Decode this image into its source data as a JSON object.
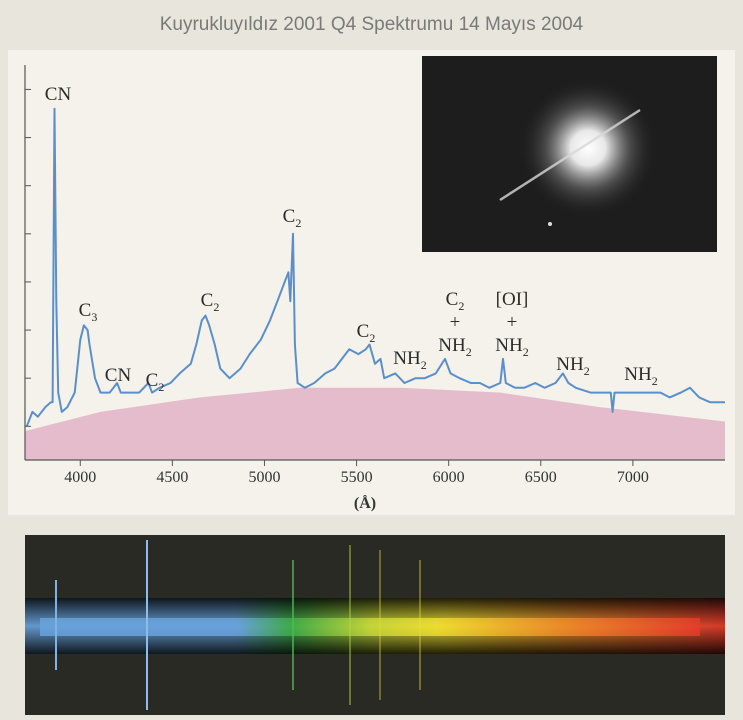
{
  "chart_data": {
    "type": "line",
    "title": "Kuyrukluyıldız 2001 Q4 Spektrumu 14 Mayıs 2004",
    "x_label": "(Å)",
    "xlim": [
      3700,
      7500
    ],
    "xticks": [
      4000,
      4500,
      5000,
      5500,
      6000,
      6500,
      7000
    ],
    "ylim": [
      -7,
      73
    ],
    "yticks": [
      0,
      10,
      20,
      30,
      40,
      50,
      60,
      70
    ],
    "series": [
      {
        "color": "#5b8fcb",
        "style": "line",
        "x": [
          3710,
          3740,
          3770,
          3810,
          3840,
          3850,
          3860,
          3870,
          3880,
          3900,
          3930,
          3970,
          4000,
          4020,
          4040,
          4050,
          4080,
          4110,
          4160,
          4200,
          4220,
          4270,
          4320,
          4370,
          4390,
          4430,
          4490,
          4540,
          4600,
          4630,
          4660,
          4680,
          4700,
          4730,
          4760,
          4810,
          4870,
          4920,
          4980,
          5030,
          5070,
          5110,
          5130,
          5140,
          5155,
          5165,
          5180,
          5220,
          5270,
          5330,
          5380,
          5440,
          5460,
          5510,
          5550,
          5570,
          5600,
          5630,
          5650,
          5710,
          5760,
          5820,
          5870,
          5930,
          5980,
          6010,
          6060,
          6120,
          6170,
          6220,
          6280,
          6295,
          6310,
          6360,
          6410,
          6470,
          6520,
          6580,
          6620,
          6650,
          6690,
          6770,
          6820,
          6880,
          6890,
          6900,
          6960,
          7040,
          7090,
          7150,
          7200,
          7260,
          7310,
          7360,
          7420,
          7470,
          7500
        ],
        "values": [
          0,
          3,
          2,
          4,
          5,
          5,
          66,
          26,
          7,
          3,
          4,
          7,
          18,
          21,
          20,
          17,
          10,
          7,
          7,
          9,
          7,
          7,
          7,
          9,
          7,
          8,
          9,
          11,
          13,
          17,
          22,
          23,
          21,
          17,
          12,
          10,
          12,
          15,
          18,
          22,
          26,
          30,
          32,
          26,
          40,
          17,
          9,
          8,
          9,
          11,
          12,
          15,
          16,
          15,
          16,
          17,
          13,
          14,
          10,
          11,
          9,
          10,
          10,
          11,
          14,
          11,
          10,
          9,
          9,
          8,
          9,
          14,
          9,
          8,
          8,
          9,
          8,
          9,
          11,
          9,
          8,
          7,
          7,
          7,
          3,
          7,
          7,
          7,
          7,
          7,
          6,
          7,
          8,
          6,
          5,
          5,
          5
        ]
      },
      {
        "color": "#e5bccb",
        "style": "area",
        "x": [
          3700,
          4110,
          4650,
          5190,
          5740,
          6280,
          6820,
          7500
        ],
        "values": [
          -1,
          3,
          6,
          8,
          8,
          7,
          4,
          1
        ]
      }
    ],
    "annotations": [
      [
        [
          "CN"
        ]
      ],
      [
        [
          "C",
          "3"
        ]
      ],
      [
        [
          "CN"
        ]
      ],
      [
        [
          "C",
          "2"
        ]
      ],
      [
        [
          "C",
          "2"
        ]
      ],
      [
        [
          "C",
          "2"
        ]
      ],
      [
        [
          "C",
          "2"
        ]
      ],
      [
        [
          "NH",
          "2"
        ]
      ],
      [
        [
          "C",
          "2"
        ],
        [
          "+"
        ],
        [
          "NH",
          "2"
        ]
      ],
      [
        [
          "[OI]"
        ],
        [
          "+"
        ],
        [
          "NH",
          "2"
        ]
      ],
      [
        [
          "NH",
          "2"
        ]
      ],
      [
        [
          "NH",
          "2"
        ]
      ]
    ]
  }
}
